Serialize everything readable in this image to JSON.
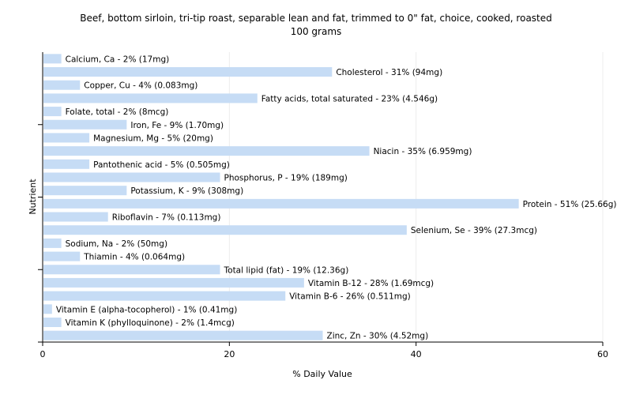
{
  "chart_data": {
    "type": "bar",
    "orientation": "horizontal",
    "title": "Beef, bottom sirloin, tri-tip roast, separable lean and fat, trimmed to 0\" fat, choice, cooked, roasted",
    "subtitle": "100 grams",
    "xlabel": "% Daily Value",
    "ylabel": "Nutrient",
    "xlim": [
      0,
      60
    ],
    "xticks": [
      0,
      20,
      40,
      60
    ],
    "bar_color": "#c6dcf5",
    "categories": [
      "Calcium, Ca",
      "Cholesterol",
      "Copper, Cu",
      "Fatty acids, total saturated",
      "Folate, total",
      "Iron, Fe",
      "Magnesium, Mg",
      "Niacin",
      "Pantothenic acid",
      "Phosphorus, P",
      "Potassium, K",
      "Protein",
      "Riboflavin",
      "Selenium, Se",
      "Sodium, Na",
      "Thiamin",
      "Total lipid (fat)",
      "Vitamin B-12",
      "Vitamin B-6",
      "Vitamin E (alpha-tocopherol)",
      "Vitamin K (phylloquinone)",
      "Zinc, Zn"
    ],
    "values": [
      2,
      31,
      4,
      23,
      2,
      9,
      5,
      35,
      5,
      19,
      9,
      51,
      7,
      39,
      2,
      4,
      19,
      28,
      26,
      1,
      2,
      30
    ],
    "labels": [
      "Calcium, Ca - 2% (17mg)",
      "Cholesterol - 31% (94mg)",
      "Copper, Cu - 4% (0.083mg)",
      "Fatty acids, total saturated - 23% (4.546g)",
      "Folate, total - 2% (8mcg)",
      "Iron, Fe - 9% (1.70mg)",
      "Magnesium, Mg - 5% (20mg)",
      "Niacin - 35% (6.959mg)",
      "Pantothenic acid - 5% (0.505mg)",
      "Phosphorus, P - 19% (189mg)",
      "Potassium, K - 9% (308mg)",
      "Protein - 51% (25.66g)",
      "Riboflavin - 7% (0.113mg)",
      "Selenium, Se - 39% (27.3mcg)",
      "Sodium, Na - 2% (50mg)",
      "Thiamin - 4% (0.064mg)",
      "Total lipid (fat) - 19% (12.36g)",
      "Vitamin B-12 - 28% (1.69mcg)",
      "Vitamin B-6 - 26% (0.511mg)",
      "Vitamin E (alpha-tocopherol) - 1% (0.41mg)",
      "Vitamin K (phylloquinone) - 2% (1.4mcg)",
      "Zinc, Zn - 30% (4.52mg)"
    ]
  }
}
